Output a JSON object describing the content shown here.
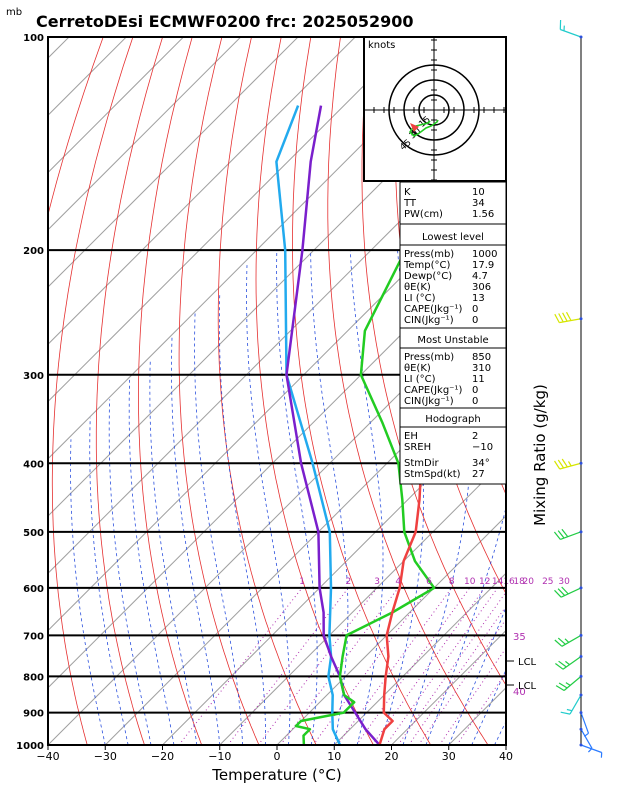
{
  "header": {
    "title": "CerretoDEsi ECMWF0200  frc: 2025052900",
    "pressure_unit": "mb"
  },
  "axes": {
    "xlabel": "Temperature (°C)",
    "right_label": "Mixing Ratio (g/kg)",
    "x_ticks": [
      "−40",
      "−30",
      "−20",
      "−10",
      "0",
      "10",
      "20",
      "30",
      "40"
    ],
    "y_ticks": [
      "100",
      "200",
      "300",
      "400",
      "500",
      "600",
      "700",
      "800",
      "900",
      "1000"
    ]
  },
  "colors": {
    "temperature": "#ef4040",
    "dewpoint": "#22cc22",
    "parcel": "#7a1fcc",
    "wetbulb": "#22aaee",
    "isotherm": "#a0a0a0",
    "dry_adiabat": "#e53030",
    "moist_adiabat": "#2b50dd",
    "mixing_ratio": "#b030b0"
  },
  "mixing_ratio_labels": [
    "1",
    "2",
    "3",
    "4",
    "6",
    "8",
    "10",
    "12",
    "14",
    "16",
    "18",
    "20",
    "25",
    "30"
  ],
  "side_labels": {
    "theta_e_1": "35",
    "theta_e_2": "40",
    "lcl_1": "LCL",
    "lcl_2": "LCL"
  },
  "hodograph": {
    "units": "knots",
    "ring_labels": [
      "15",
      "30",
      "45"
    ],
    "points": [
      [
        4,
        10
      ],
      [
        3,
        12
      ],
      [
        0,
        14
      ],
      [
        -3,
        16
      ],
      [
        -8,
        18
      ],
      [
        -12,
        21
      ],
      [
        -16,
        24
      ],
      [
        -20,
        26
      ],
      [
        -22,
        24
      ],
      [
        -24,
        22
      ],
      [
        -22,
        19
      ],
      [
        -18,
        16
      ],
      [
        -14,
        15
      ],
      [
        -10,
        14
      ],
      [
        -6,
        13
      ],
      [
        -4,
        11
      ]
    ],
    "storm_motion": [
      -16,
      17
    ]
  },
  "indices_box": [
    {
      "label": "K",
      "value": "10"
    },
    {
      "label": "TT",
      "value": "34"
    },
    {
      "label": "PW(cm)",
      "value": "1.56"
    }
  ],
  "lowest_level": {
    "title": "Lowest level",
    "rows": [
      {
        "label": "Press(mb)",
        "value": "1000"
      },
      {
        "label": "Temp(°C)",
        "value": "17.9"
      },
      {
        "label": "Dewp(°C)",
        "value": "4.7"
      },
      {
        "label": "θE(K)",
        "value": "306"
      },
      {
        "label": "LI (°C)",
        "value": "13"
      },
      {
        "label": "CAPE(Jkg⁻¹)",
        "value": "0"
      },
      {
        "label": "CIN(Jkg⁻¹)",
        "value": "0"
      }
    ]
  },
  "most_unstable": {
    "title": "Most Unstable",
    "rows": [
      {
        "label": "Press(mb)",
        "value": "850"
      },
      {
        "label": "θE(K)",
        "value": "310"
      },
      {
        "label": "LI (°C)",
        "value": "11"
      },
      {
        "label": "CAPE(Jkg⁻¹)",
        "value": "0"
      },
      {
        "label": "CIN(Jkg⁻¹)",
        "value": "0"
      }
    ]
  },
  "hodo_box": {
    "title": "Hodograph",
    "rows": [
      {
        "label": "EH",
        "value": "2"
      },
      {
        "label": "SREH",
        "value": "−10"
      },
      {
        "label": "StmDir",
        "value": "34°"
      },
      {
        "label": "StmSpd(kt)",
        "value": "27"
      }
    ]
  },
  "chart_data": {
    "type": "line",
    "title": "CerretoDEsi ECMWF0200  frc: 2025052900",
    "xlabel": "Temperature (°C)",
    "ylabel": "mb",
    "xlim": [
      -40,
      40
    ],
    "ylim": [
      1000,
      100
    ],
    "y_scale": "log",
    "grid": true,
    "series": [
      {
        "name": "temperature",
        "points": [
          [
            1000,
            17.9
          ],
          [
            950,
            16
          ],
          [
            925,
            16
          ],
          [
            900,
            13
          ],
          [
            850,
            10
          ],
          [
            800,
            7
          ],
          [
            750,
            4
          ],
          [
            700,
            0
          ],
          [
            650,
            -3
          ],
          [
            600,
            -6
          ],
          [
            550,
            -10
          ],
          [
            500,
            -13
          ],
          [
            450,
            -18
          ],
          [
            400,
            -24
          ],
          [
            350,
            -31
          ],
          [
            300,
            -39
          ],
          [
            260,
            -47
          ],
          [
            200,
            -49
          ],
          [
            150,
            -51
          ],
          [
            125,
            -52
          ],
          [
            100,
            -55
          ]
        ]
      },
      {
        "name": "dewpoint",
        "points": [
          [
            1000,
            4.7
          ],
          [
            970,
            3
          ],
          [
            950,
            3
          ],
          [
            940,
            0
          ],
          [
            925,
            0
          ],
          [
            900,
            6
          ],
          [
            870,
            6
          ],
          [
            850,
            3
          ],
          [
            800,
            -1
          ],
          [
            750,
            -4
          ],
          [
            700,
            -7
          ],
          [
            650,
            -3
          ],
          [
            600,
            0
          ],
          [
            550,
            -8
          ],
          [
            500,
            -15
          ],
          [
            450,
            -21
          ],
          [
            400,
            -28
          ],
          [
            350,
            -38
          ],
          [
            300,
            -50
          ],
          [
            260,
            -57
          ],
          [
            200,
            -64
          ],
          [
            150,
            -72
          ],
          [
            100,
            -84
          ]
        ]
      },
      {
        "name": "parcel",
        "points": [
          [
            1000,
            17.9
          ],
          [
            950,
            12.7
          ],
          [
            900,
            8
          ],
          [
            850,
            3
          ],
          [
            800,
            -1
          ],
          [
            750,
            -6
          ],
          [
            700,
            -11
          ],
          [
            650,
            -15
          ],
          [
            600,
            -20
          ],
          [
            500,
            -30
          ],
          [
            400,
            -45
          ],
          [
            300,
            -63
          ],
          [
            200,
            -82
          ],
          [
            150,
            -96
          ],
          [
            125,
            -104
          ]
        ]
      },
      {
        "name": "wetbulb",
        "points": [
          [
            1000,
            11
          ],
          [
            950,
            7
          ],
          [
            900,
            4
          ],
          [
            850,
            1
          ],
          [
            800,
            -3
          ],
          [
            750,
            -6
          ],
          [
            700,
            -10
          ],
          [
            600,
            -18
          ],
          [
            500,
            -28
          ],
          [
            400,
            -43
          ],
          [
            300,
            -63
          ],
          [
            200,
            -85
          ],
          [
            150,
            -102
          ],
          [
            125,
            -108
          ]
        ]
      }
    ],
    "wind_barbs": [
      {
        "pressure": 1000,
        "dir": 110,
        "speed": 5
      },
      {
        "pressure": 950,
        "dir": 150,
        "speed": 5
      },
      {
        "pressure": 900,
        "dir": 160,
        "speed": 5
      },
      {
        "pressure": 850,
        "dir": 210,
        "speed": 15
      },
      {
        "pressure": 800,
        "dir": 230,
        "speed": 25
      },
      {
        "pressure": 750,
        "dir": 235,
        "speed": 25
      },
      {
        "pressure": 700,
        "dir": 240,
        "speed": 25
      },
      {
        "pressure": 600,
        "dir": 245,
        "speed": 30
      },
      {
        "pressure": 500,
        "dir": 250,
        "speed": 30
      },
      {
        "pressure": 400,
        "dir": 255,
        "speed": 35
      },
      {
        "pressure": 250,
        "dir": 260,
        "speed": 40
      },
      {
        "pressure": 100,
        "dir": 290,
        "speed": 15
      }
    ]
  }
}
